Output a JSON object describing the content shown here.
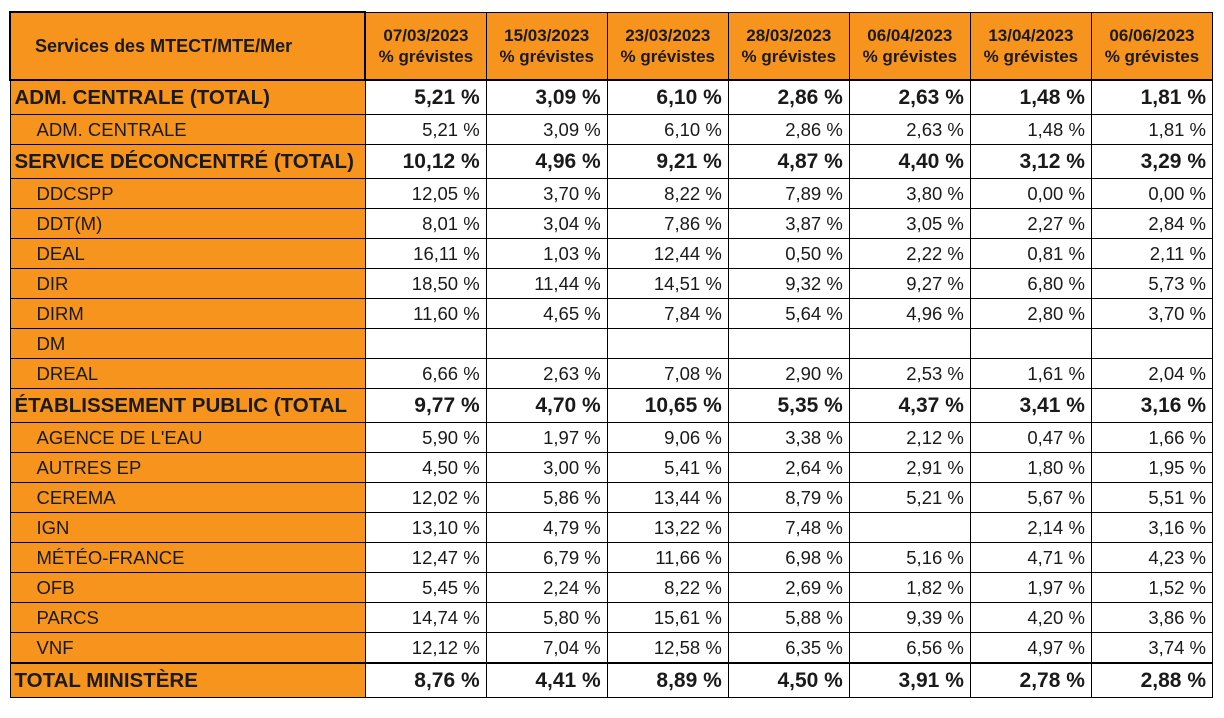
{
  "chart_data": {
    "type": "table",
    "header_label": "Services des MTECT/MTE/Mer",
    "columns": [
      {
        "date": "07/03/2023",
        "sub": "% grévistes"
      },
      {
        "date": "15/03/2023",
        "sub": "% grévistes"
      },
      {
        "date": "23/03/2023",
        "sub": "% grévistes"
      },
      {
        "date": "28/03/2023",
        "sub": "% grévistes"
      },
      {
        "date": "06/04/2023",
        "sub": "% grévistes"
      },
      {
        "date": "13/04/2023",
        "sub": "% grévistes"
      },
      {
        "date": "06/06/2023",
        "sub": "% grévistes"
      }
    ],
    "rows": [
      {
        "label": "ADM. CENTRALE (TOTAL)",
        "kind": "total",
        "values": [
          "5,21 %",
          "3,09 %",
          "6,10 %",
          "2,86 %",
          "2,63 %",
          "1,48 %",
          "1,81 %"
        ]
      },
      {
        "label": "ADM. CENTRALE",
        "kind": "sub",
        "values": [
          "5,21 %",
          "3,09 %",
          "6,10 %",
          "2,86 %",
          "2,63 %",
          "1,48 %",
          "1,81 %"
        ]
      },
      {
        "label": "SERVICE DÉCONCENTRÉ (TOTAL)",
        "kind": "total",
        "values": [
          "10,12 %",
          "4,96 %",
          "9,21 %",
          "4,87 %",
          "4,40 %",
          "3,12 %",
          "3,29 %"
        ]
      },
      {
        "label": "DDCSPP",
        "kind": "sub",
        "values": [
          "12,05 %",
          "3,70 %",
          "8,22 %",
          "7,89 %",
          "3,80 %",
          "0,00 %",
          "0,00 %"
        ]
      },
      {
        "label": "DDT(M)",
        "kind": "sub",
        "values": [
          "8,01 %",
          "3,04 %",
          "7,86 %",
          "3,87 %",
          "3,05 %",
          "2,27 %",
          "2,84 %"
        ]
      },
      {
        "label": "DEAL",
        "kind": "sub",
        "values": [
          "16,11 %",
          "1,03 %",
          "12,44 %",
          "0,50 %",
          "2,22 %",
          "0,81 %",
          "2,11 %"
        ]
      },
      {
        "label": "DIR",
        "kind": "sub",
        "values": [
          "18,50 %",
          "11,44 %",
          "14,51 %",
          "9,32 %",
          "9,27 %",
          "6,80 %",
          "5,73 %"
        ]
      },
      {
        "label": "DIRM",
        "kind": "sub",
        "values": [
          "11,60 %",
          "4,65 %",
          "7,84 %",
          "5,64 %",
          "4,96 %",
          "2,80 %",
          "3,70 %"
        ]
      },
      {
        "label": "DM",
        "kind": "sub",
        "values": [
          "",
          "",
          "",
          "",
          "",
          "",
          ""
        ]
      },
      {
        "label": "DREAL",
        "kind": "sub",
        "values": [
          "6,66 %",
          "2,63 %",
          "7,08 %",
          "2,90 %",
          "2,53 %",
          "1,61 %",
          "2,04 %"
        ]
      },
      {
        "label": "ÉTABLISSEMENT PUBLIC (TOTAL",
        "kind": "total",
        "values": [
          "9,77 %",
          "4,70 %",
          "10,65 %",
          "5,35 %",
          "4,37 %",
          "3,41 %",
          "3,16 %"
        ]
      },
      {
        "label": "AGENCE DE L'EAU",
        "kind": "sub",
        "values": [
          "5,90 %",
          "1,97 %",
          "9,06 %",
          "3,38 %",
          "2,12 %",
          "0,47 %",
          "1,66 %"
        ]
      },
      {
        "label": "AUTRES EP",
        "kind": "sub",
        "values": [
          "4,50 %",
          "3,00 %",
          "5,41 %",
          "2,64 %",
          "2,91 %",
          "1,80 %",
          "1,95 %"
        ]
      },
      {
        "label": "CEREMA",
        "kind": "sub",
        "values": [
          "12,02 %",
          "5,86 %",
          "13,44 %",
          "8,79 %",
          "5,21 %",
          "5,67 %",
          "5,51 %"
        ]
      },
      {
        "label": "IGN",
        "kind": "sub",
        "values": [
          "13,10 %",
          "4,79 %",
          "13,22 %",
          "7,48 %",
          "",
          "2,14 %",
          "3,16 %"
        ]
      },
      {
        "label": "MÉTÉO-FRANCE",
        "kind": "sub",
        "values": [
          "12,47 %",
          "6,79 %",
          "11,66 %",
          "6,98 %",
          "5,16 %",
          "4,71 %",
          "4,23 %"
        ]
      },
      {
        "label": "OFB",
        "kind": "sub",
        "values": [
          "5,45 %",
          "2,24 %",
          "8,22 %",
          "2,69 %",
          "1,82 %",
          "1,97 %",
          "1,52 %"
        ]
      },
      {
        "label": "PARCS",
        "kind": "sub",
        "values": [
          "14,74 %",
          "5,80 %",
          "15,61 %",
          "5,88 %",
          "9,39 %",
          "4,20 %",
          "3,86 %"
        ]
      },
      {
        "label": "VNF",
        "kind": "sub",
        "values": [
          "12,12 %",
          "7,04 %",
          "12,58 %",
          "6,35 %",
          "6,56 %",
          "4,97 %",
          "3,74 %"
        ]
      },
      {
        "label": "TOTAL MINISTÈRE",
        "kind": "grand",
        "values": [
          "8,76 %",
          "4,41 %",
          "8,89 %",
          "4,50 %",
          "3,91 %",
          "2,78 %",
          "2,88 %"
        ]
      }
    ],
    "colors": {
      "label_background": "#f7941d",
      "border": "#000000",
      "cell_background": "#ffffff"
    }
  }
}
